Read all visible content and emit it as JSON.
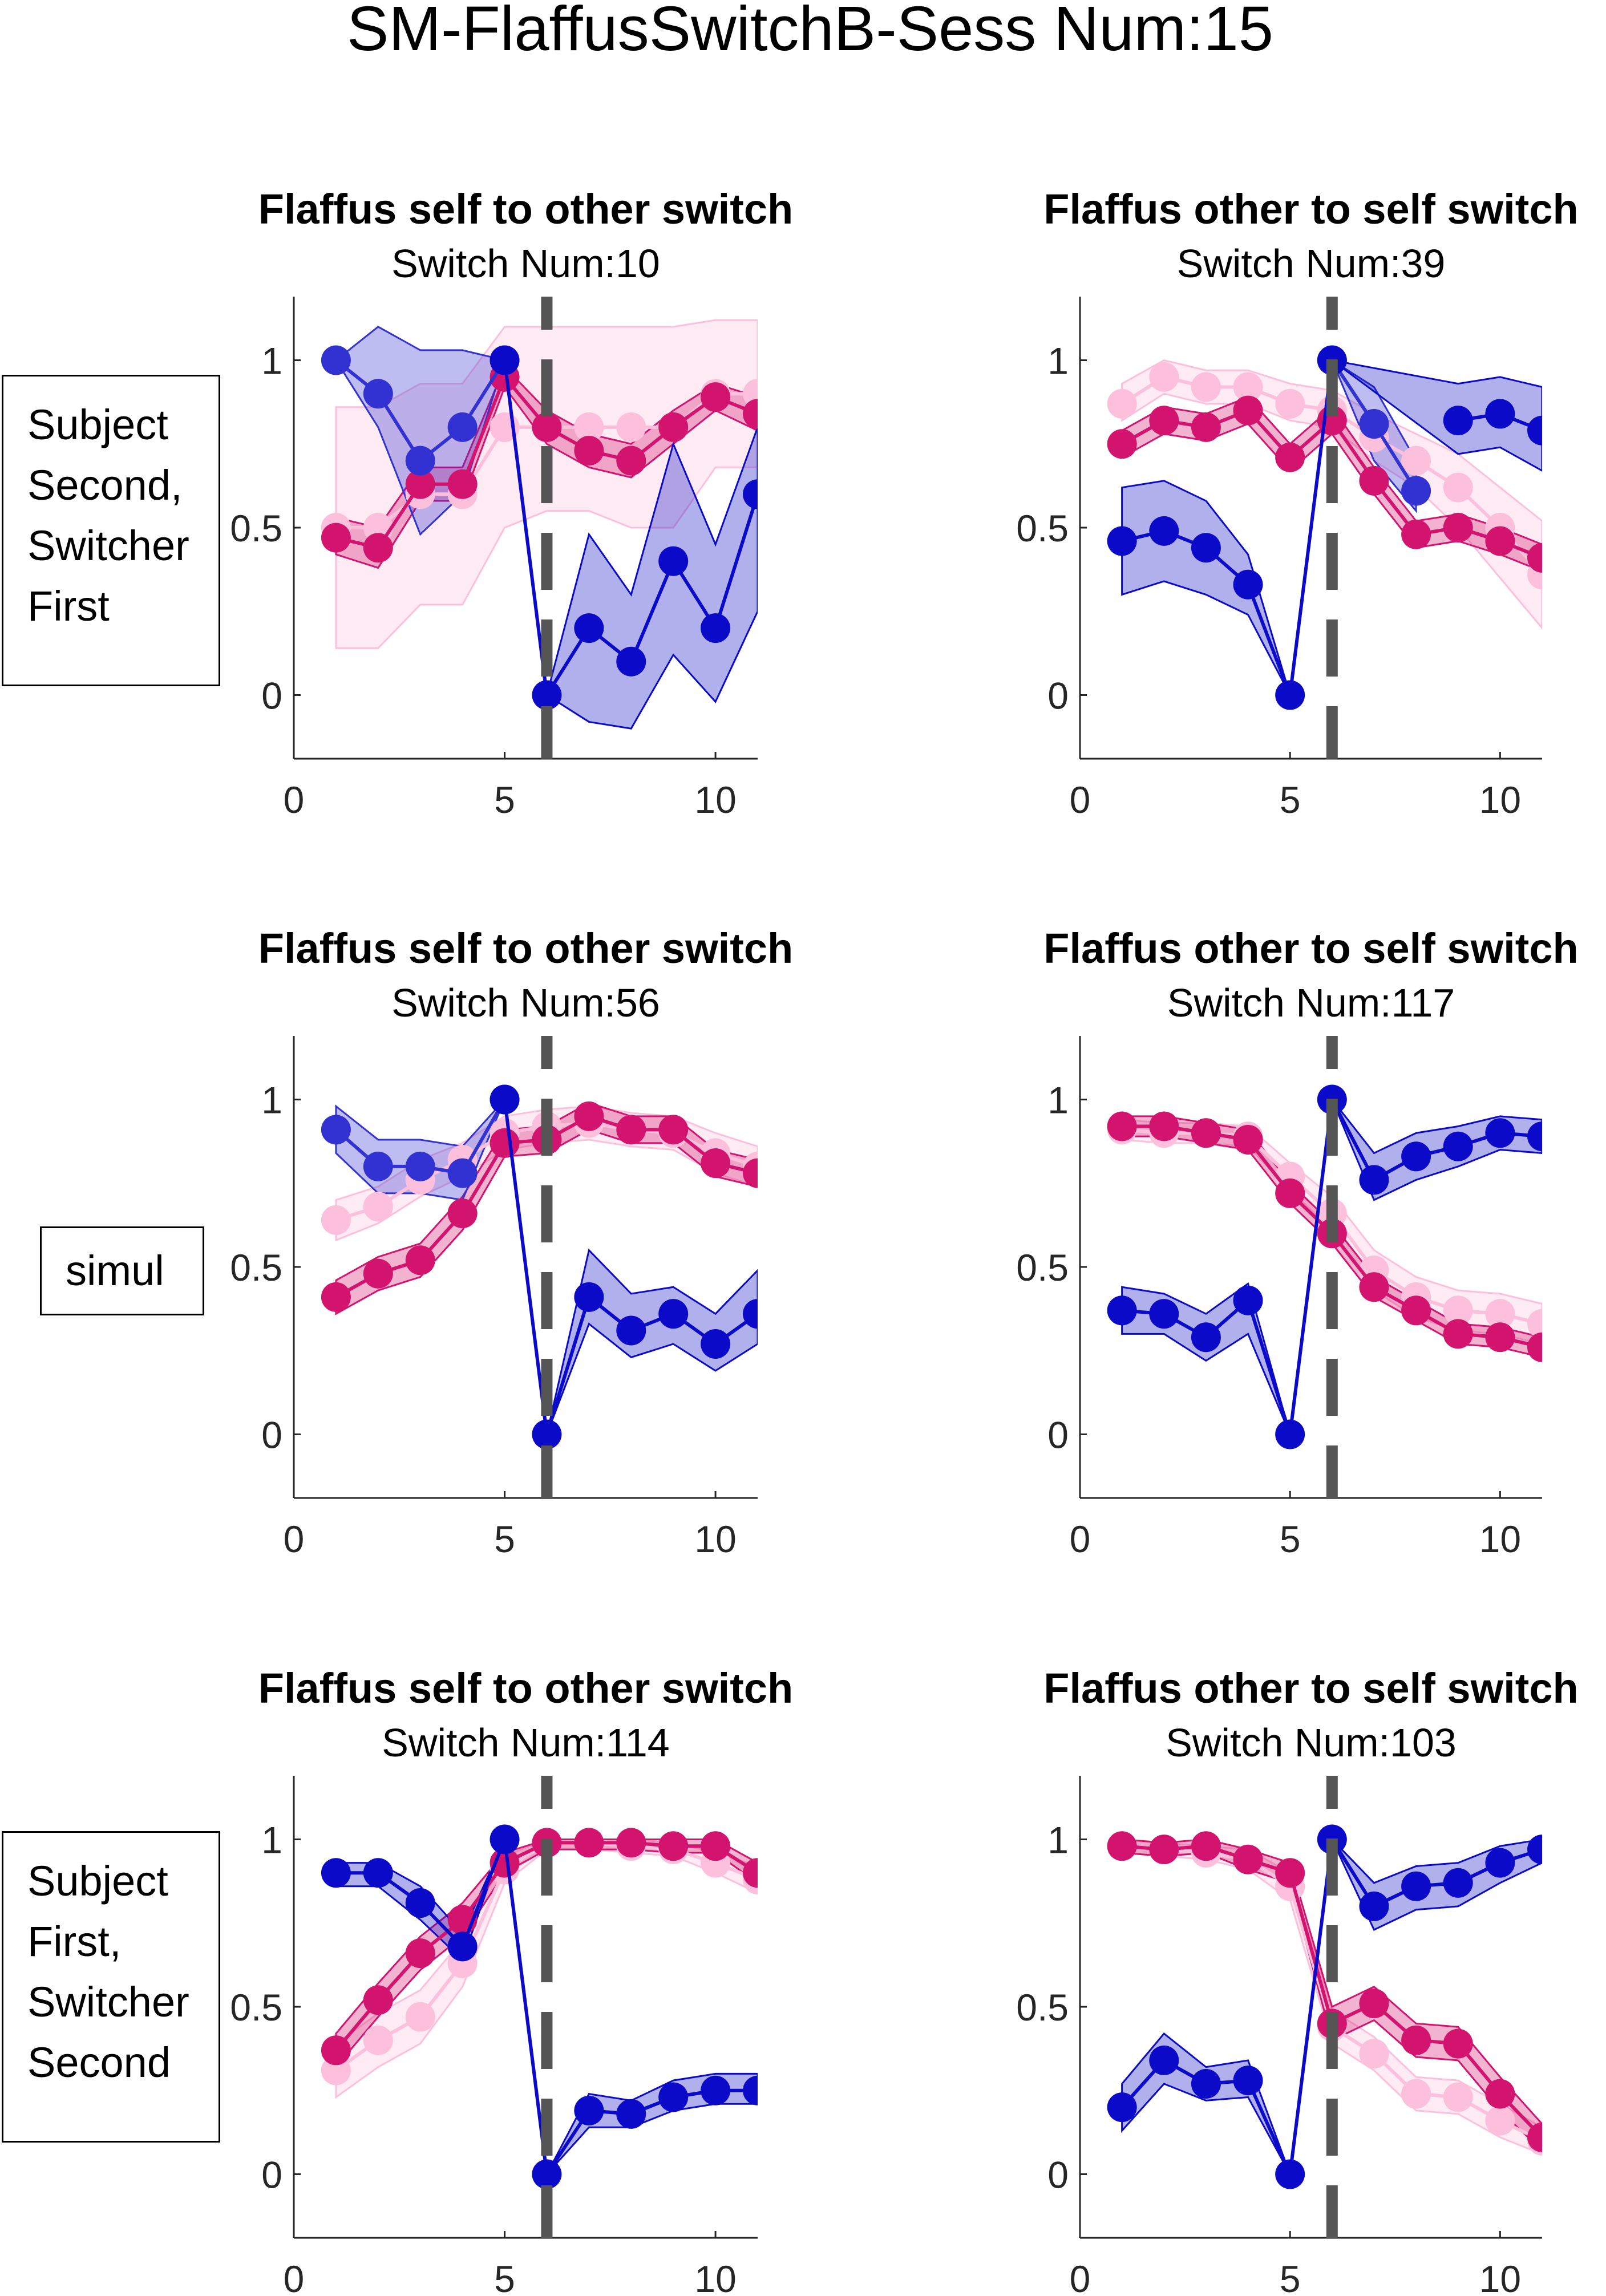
{
  "title": "SM-FlaffusSwitchB-Sess Num:15",
  "colors": {
    "dark_blue": "#0a0ac8",
    "mid_blue": "#3232d2",
    "dark_pink": "#d2146e",
    "light_pink": "#fcc0dc",
    "switch_line": "#555555"
  },
  "row_labels": [
    [
      "Subject",
      "Second,",
      "Switcher",
      "First"
    ],
    [
      "simul"
    ],
    [
      "Subject",
      "First,",
      "Switcher",
      "Second"
    ]
  ],
  "chart_data": [
    {
      "type": "line",
      "row": 0,
      "col": 0,
      "title": "Flaffus self to other switch",
      "subtitle": "Switch Num:10",
      "x": [
        1,
        2,
        3,
        4,
        5,
        6,
        7,
        8,
        9,
        10,
        11
      ],
      "xlim": [
        0,
        11
      ],
      "ylim": [
        -0.19,
        1.19
      ],
      "xticks": [
        0,
        5,
        10
      ],
      "yticks": [
        0,
        0.5,
        1
      ],
      "switch_x": 6,
      "series": [
        {
          "name": "light-pink",
          "color": "#fcc0dc",
          "values": [
            0.5,
            0.5,
            0.6,
            0.6,
            0.8,
            0.8,
            0.8,
            0.8,
            0.8,
            0.9,
            0.9
          ],
          "low": [
            0.14,
            0.14,
            0.27,
            0.27,
            0.5,
            0.55,
            0.55,
            0.5,
            0.5,
            0.68,
            0.68
          ],
          "high": [
            0.86,
            0.86,
            0.93,
            0.93,
            1.1,
            1.1,
            1.1,
            1.1,
            1.1,
            1.12,
            1.12
          ]
        },
        {
          "name": "dark-pink",
          "color": "#d2146e",
          "values": [
            0.47,
            0.44,
            0.63,
            0.63,
            0.95,
            0.8,
            0.73,
            0.7,
            0.8,
            0.89,
            0.84
          ],
          "low": [
            0.42,
            0.38,
            0.58,
            0.58,
            0.92,
            0.75,
            0.68,
            0.65,
            0.75,
            0.85,
            0.79
          ],
          "high": [
            0.53,
            0.5,
            0.68,
            0.68,
            0.98,
            0.85,
            0.78,
            0.75,
            0.85,
            0.93,
            0.89
          ]
        },
        {
          "name": "mid-blue",
          "color": "#3232d2",
          "values": [
            1,
            0.9,
            0.7,
            0.8,
            1,
            null,
            null,
            null,
            null,
            null,
            null
          ],
          "low": [
            1,
            0.8,
            0.48,
            0.6,
            1,
            null,
            null,
            null,
            null,
            null,
            null
          ],
          "high": [
            1,
            1.1,
            1.03,
            1.03,
            1,
            null,
            null,
            null,
            null,
            null,
            null
          ]
        },
        {
          "name": "dark-blue",
          "color": "#0a0ac8",
          "values": [
            null,
            null,
            null,
            null,
            1,
            0,
            0.2,
            0.1,
            0.4,
            0.2,
            0.6
          ],
          "low": [
            null,
            null,
            null,
            null,
            1,
            0,
            -0.08,
            -0.1,
            0.12,
            -0.02,
            0.25
          ],
          "high": [
            null,
            null,
            null,
            null,
            1,
            0,
            0.48,
            0.3,
            0.75,
            0.45,
            0.8
          ]
        }
      ]
    },
    {
      "type": "line",
      "row": 0,
      "col": 1,
      "title": "Flaffus other to self switch",
      "subtitle": "Switch Num:39",
      "x": [
        1,
        2,
        3,
        4,
        5,
        6,
        7,
        8,
        9,
        10,
        11
      ],
      "xlim": [
        0,
        11
      ],
      "ylim": [
        -0.19,
        1.19
      ],
      "xticks": [
        0,
        5,
        10
      ],
      "yticks": [
        0,
        0.5,
        1
      ],
      "switch_x": 6,
      "series": [
        {
          "name": "light-pink",
          "color": "#fcc0dc",
          "values": [
            0.87,
            0.95,
            0.92,
            0.92,
            0.87,
            0.85,
            0.77,
            0.7,
            0.62,
            0.5,
            0.36
          ],
          "low": [
            0.82,
            0.9,
            0.87,
            0.87,
            0.82,
            0.8,
            0.7,
            0.62,
            0.5,
            0.35,
            0.2
          ],
          "high": [
            0.93,
            1.0,
            0.97,
            0.97,
            0.93,
            0.91,
            0.84,
            0.78,
            0.72,
            0.62,
            0.52
          ]
        },
        {
          "name": "dark-pink",
          "color": "#d2146e",
          "values": [
            0.75,
            0.82,
            0.8,
            0.85,
            0.71,
            0.82,
            0.64,
            0.48,
            0.5,
            0.46,
            0.41
          ],
          "low": [
            0.71,
            0.78,
            0.76,
            0.81,
            0.67,
            0.78,
            0.6,
            0.44,
            0.46,
            0.42,
            0.37
          ],
          "high": [
            0.79,
            0.86,
            0.84,
            0.89,
            0.75,
            0.86,
            0.68,
            0.52,
            0.54,
            0.5,
            0.45
          ]
        },
        {
          "name": "mid-blue",
          "color": "#3232d2",
          "values": [
            null,
            null,
            null,
            null,
            null,
            1,
            0.81,
            0.61,
            null,
            null,
            null
          ],
          "low": [
            null,
            null,
            null,
            null,
            null,
            1,
            0.7,
            0.55,
            null,
            null,
            null
          ],
          "high": [
            null,
            null,
            null,
            null,
            null,
            1,
            0.92,
            0.7,
            null,
            null,
            null
          ]
        },
        {
          "name": "dark-blue",
          "color": "#0a0ac8",
          "values": [
            0.46,
            0.49,
            0.44,
            0.33,
            0,
            1,
            null,
            null,
            0.82,
            0.84,
            0.79
          ],
          "low": [
            0.3,
            0.34,
            0.3,
            0.24,
            0,
            1,
            null,
            null,
            0.72,
            0.74,
            0.67
          ],
          "high": [
            0.62,
            0.64,
            0.58,
            0.42,
            0,
            1,
            null,
            null,
            0.93,
            0.95,
            0.92
          ]
        }
      ]
    },
    {
      "type": "line",
      "row": 1,
      "col": 0,
      "title": "Flaffus self to other switch",
      "subtitle": "Switch Num:56",
      "x": [
        1,
        2,
        3,
        4,
        5,
        6,
        7,
        8,
        9,
        10,
        11
      ],
      "xlim": [
        0,
        11
      ],
      "ylim": [
        -0.19,
        1.19
      ],
      "xticks": [
        0,
        5,
        10
      ],
      "yticks": [
        0,
        0.5,
        1
      ],
      "switch_x": 6,
      "series": [
        {
          "name": "light-pink",
          "color": "#fcc0dc",
          "values": [
            0.64,
            0.68,
            0.76,
            0.82,
            0.9,
            0.92,
            0.93,
            0.91,
            0.9,
            0.84,
            0.8
          ],
          "low": [
            0.58,
            0.63,
            0.71,
            0.77,
            0.85,
            0.87,
            0.88,
            0.86,
            0.85,
            0.78,
            0.74
          ],
          "high": [
            0.7,
            0.74,
            0.82,
            0.87,
            0.95,
            0.97,
            0.98,
            0.96,
            0.95,
            0.9,
            0.86
          ]
        },
        {
          "name": "dark-pink",
          "color": "#d2146e",
          "values": [
            0.41,
            0.48,
            0.52,
            0.66,
            0.87,
            0.88,
            0.95,
            0.91,
            0.91,
            0.81,
            0.78
          ],
          "low": [
            0.36,
            0.43,
            0.47,
            0.61,
            0.83,
            0.84,
            0.91,
            0.87,
            0.87,
            0.77,
            0.74
          ],
          "high": [
            0.46,
            0.53,
            0.57,
            0.71,
            0.91,
            0.92,
            0.99,
            0.95,
            0.95,
            0.85,
            0.82
          ]
        },
        {
          "name": "mid-blue",
          "color": "#3232d2",
          "values": [
            0.91,
            0.8,
            0.8,
            0.78,
            1,
            null,
            null,
            null,
            null,
            null,
            null
          ],
          "low": [
            0.84,
            0.72,
            0.72,
            0.7,
            1,
            null,
            null,
            null,
            null,
            null,
            null
          ],
          "high": [
            0.98,
            0.88,
            0.88,
            0.86,
            1,
            null,
            null,
            null,
            null,
            null,
            null
          ]
        },
        {
          "name": "dark-blue",
          "color": "#0a0ac8",
          "values": [
            null,
            null,
            null,
            null,
            1,
            0,
            0.41,
            0.31,
            0.36,
            0.27,
            0.36
          ],
          "low": [
            null,
            null,
            null,
            null,
            1,
            0,
            0.33,
            0.23,
            0.27,
            0.19,
            0.27
          ],
          "high": [
            null,
            null,
            null,
            null,
            1,
            0,
            0.55,
            0.42,
            0.44,
            0.36,
            0.49
          ]
        }
      ]
    },
    {
      "type": "line",
      "row": 1,
      "col": 1,
      "title": "Flaffus other to self switch",
      "subtitle": "Switch Num:117",
      "x": [
        1,
        2,
        3,
        4,
        5,
        6,
        7,
        8,
        9,
        10,
        11
      ],
      "xlim": [
        0,
        11
      ],
      "ylim": [
        -0.19,
        1.19
      ],
      "xticks": [
        0,
        5,
        10
      ],
      "yticks": [
        0,
        0.5,
        1
      ],
      "switch_x": 6,
      "series": [
        {
          "name": "light-pink",
          "color": "#fcc0dc",
          "values": [
            0.91,
            0.9,
            0.9,
            0.89,
            0.77,
            0.66,
            0.49,
            0.41,
            0.37,
            0.36,
            0.33
          ],
          "low": [
            0.88,
            0.87,
            0.87,
            0.86,
            0.73,
            0.61,
            0.43,
            0.35,
            0.31,
            0.3,
            0.27
          ],
          "high": [
            0.94,
            0.93,
            0.93,
            0.92,
            0.81,
            0.71,
            0.55,
            0.47,
            0.43,
            0.42,
            0.39
          ]
        },
        {
          "name": "dark-pink",
          "color": "#d2146e",
          "values": [
            0.92,
            0.92,
            0.9,
            0.88,
            0.72,
            0.6,
            0.44,
            0.37,
            0.3,
            0.29,
            0.26
          ],
          "low": [
            0.89,
            0.89,
            0.87,
            0.85,
            0.69,
            0.57,
            0.41,
            0.34,
            0.27,
            0.26,
            0.23
          ],
          "high": [
            0.95,
            0.95,
            0.93,
            0.91,
            0.75,
            0.63,
            0.47,
            0.4,
            0.33,
            0.32,
            0.29
          ]
        },
        {
          "name": "dark-blue",
          "color": "#0a0ac8",
          "values": [
            0.37,
            0.36,
            0.29,
            0.4,
            0,
            1,
            0.76,
            0.83,
            0.86,
            0.9,
            0.89
          ],
          "low": [
            0.3,
            0.3,
            0.22,
            0.3,
            0,
            1,
            0.7,
            0.76,
            0.8,
            0.85,
            0.84
          ],
          "high": [
            0.44,
            0.42,
            0.36,
            0.45,
            0,
            1,
            0.84,
            0.9,
            0.92,
            0.95,
            0.94
          ]
        }
      ]
    },
    {
      "type": "line",
      "row": 2,
      "col": 0,
      "title": "Flaffus self to other switch",
      "subtitle": "Switch Num:114",
      "x": [
        1,
        2,
        3,
        4,
        5,
        6,
        7,
        8,
        9,
        10,
        11
      ],
      "xlim": [
        0,
        11
      ],
      "ylim": [
        -0.19,
        1.19
      ],
      "xticks": [
        0,
        5,
        10
      ],
      "yticks": [
        0,
        0.5,
        1
      ],
      "switch_x": 6,
      "series": [
        {
          "name": "light-pink",
          "color": "#fcc0dc",
          "values": [
            0.31,
            0.4,
            0.47,
            0.63,
            0.91,
            0.99,
            0.99,
            0.98,
            0.97,
            0.93,
            0.88
          ],
          "low": [
            0.23,
            0.32,
            0.39,
            0.56,
            0.87,
            0.97,
            0.97,
            0.96,
            0.95,
            0.9,
            0.84
          ],
          "high": [
            0.39,
            0.48,
            0.55,
            0.7,
            0.95,
            1.0,
            1.0,
            1.0,
            0.99,
            0.96,
            0.92
          ]
        },
        {
          "name": "dark-pink",
          "color": "#d2146e",
          "values": [
            0.37,
            0.52,
            0.66,
            0.76,
            0.93,
            0.99,
            0.99,
            0.99,
            0.98,
            0.98,
            0.9
          ],
          "low": [
            0.32,
            0.47,
            0.61,
            0.71,
            0.9,
            0.97,
            0.97,
            0.97,
            0.96,
            0.96,
            0.87
          ],
          "high": [
            0.42,
            0.57,
            0.71,
            0.81,
            0.96,
            1.0,
            1.0,
            1.0,
            1.0,
            1.0,
            0.93
          ]
        },
        {
          "name": "dark-blue",
          "color": "#0a0ac8",
          "values": [
            0.9,
            0.9,
            0.81,
            0.68,
            1,
            0,
            0.19,
            0.18,
            0.23,
            0.25,
            0.25
          ],
          "low": [
            0.86,
            0.86,
            0.76,
            0.64,
            1,
            0,
            0.14,
            0.14,
            0.19,
            0.21,
            0.21
          ],
          "high": [
            0.93,
            0.93,
            0.86,
            0.72,
            1,
            0,
            0.24,
            0.22,
            0.28,
            0.3,
            0.3
          ]
        }
      ]
    },
    {
      "type": "line",
      "row": 2,
      "col": 1,
      "title": "Flaffus other to self switch",
      "subtitle": "Switch Num:103",
      "x": [
        1,
        2,
        3,
        4,
        5,
        6,
        7,
        8,
        9,
        10,
        11
      ],
      "xlim": [
        0,
        11
      ],
      "ylim": [
        -0.19,
        1.19
      ],
      "xticks": [
        0,
        5,
        10
      ],
      "yticks": [
        0,
        0.5,
        1
      ],
      "switch_x": 6,
      "series": [
        {
          "name": "light-pink",
          "color": "#fcc0dc",
          "values": [
            0.98,
            0.97,
            0.96,
            0.94,
            0.86,
            0.44,
            0.36,
            0.24,
            0.23,
            0.16,
            0.1
          ],
          "low": [
            0.96,
            0.95,
            0.94,
            0.91,
            0.82,
            0.39,
            0.31,
            0.19,
            0.18,
            0.11,
            0.06
          ],
          "high": [
            1.0,
            0.99,
            0.98,
            0.97,
            0.9,
            0.49,
            0.41,
            0.29,
            0.28,
            0.21,
            0.14
          ]
        },
        {
          "name": "dark-pink",
          "color": "#d2146e",
          "values": [
            0.98,
            0.97,
            0.98,
            0.94,
            0.9,
            0.45,
            0.51,
            0.4,
            0.39,
            0.24,
            0.11
          ],
          "low": [
            0.96,
            0.95,
            0.96,
            0.91,
            0.87,
            0.4,
            0.46,
            0.35,
            0.34,
            0.19,
            0.07
          ],
          "high": [
            1.0,
            0.99,
            1.0,
            0.97,
            0.93,
            0.5,
            0.56,
            0.45,
            0.44,
            0.29,
            0.15
          ]
        },
        {
          "name": "dark-blue",
          "color": "#0a0ac8",
          "values": [
            0.2,
            0.34,
            0.27,
            0.28,
            0,
            1,
            0.8,
            0.86,
            0.87,
            0.93,
            0.97
          ],
          "low": [
            0.13,
            0.27,
            0.22,
            0.23,
            0,
            1,
            0.73,
            0.79,
            0.8,
            0.87,
            0.93
          ],
          "high": [
            0.27,
            0.42,
            0.32,
            0.34,
            0,
            1,
            0.87,
            0.92,
            0.93,
            0.98,
            1.0
          ]
        }
      ]
    }
  ]
}
